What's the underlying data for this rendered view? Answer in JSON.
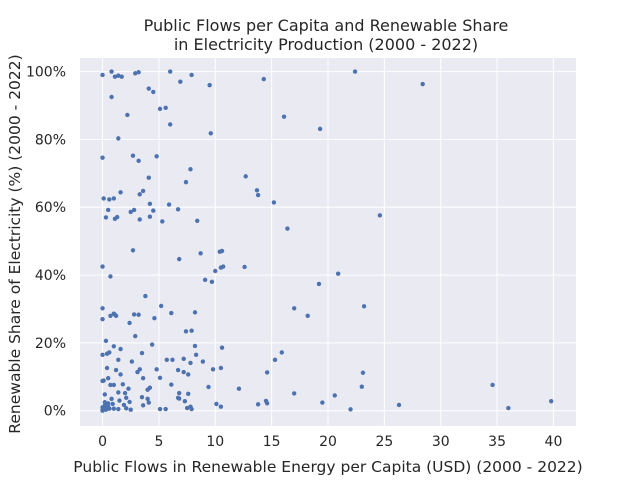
{
  "chart_data": {
    "type": "scatter",
    "title": [
      "Public Flows per Capita and Renewable Share",
      "in Electricity Production (2000 - 2022)"
    ],
    "xlabel": "Public Flows in Renewable Energy per Capita (USD) (2000 - 2022)",
    "ylabel": "Renewable Share of Electricity (%) (2000 - 2022)",
    "xlim": [
      -2,
      42
    ],
    "ylim": [
      -4.5,
      104
    ],
    "xticks": [
      0,
      5,
      10,
      15,
      20,
      25,
      30,
      35,
      40
    ],
    "xtick_labels": [
      "0",
      "5",
      "10",
      "15",
      "20",
      "25",
      "30",
      "35",
      "40"
    ],
    "yticks": [
      0,
      20,
      40,
      60,
      80,
      100
    ],
    "ytick_labels": [
      "0%",
      "20%",
      "40%",
      "60%",
      "80%",
      "100%"
    ],
    "grid": true,
    "colors": {
      "background": "#eaeaf2",
      "grid": "#ffffff",
      "point": "#4c72b0",
      "text": "#262626"
    },
    "points": [
      [
        0.0,
        99
      ],
      [
        0.8,
        100
      ],
      [
        1.1,
        98.5
      ],
      [
        1.4,
        98.8
      ],
      [
        1.7,
        98.5
      ],
      [
        2.9,
        99.5
      ],
      [
        3.2,
        99.8
      ],
      [
        6.0,
        100
      ],
      [
        7.9,
        99
      ],
      [
        22.4,
        100
      ],
      [
        0.8,
        92.5
      ],
      [
        4.1,
        95
      ],
      [
        4.5,
        94
      ],
      [
        6.9,
        97
      ],
      [
        9.5,
        96
      ],
      [
        14.3,
        97.8
      ],
      [
        28.4,
        96.3
      ],
      [
        5.1,
        89
      ],
      [
        5.6,
        89.3
      ],
      [
        2.2,
        87.2
      ],
      [
        6.0,
        84.4
      ],
      [
        16.1,
        86.7
      ],
      [
        1.4,
        80.3
      ],
      [
        9.6,
        81.8
      ],
      [
        19.3,
        83.1
      ],
      [
        0.0,
        74.6
      ],
      [
        2.7,
        75.2
      ],
      [
        3.2,
        73.7
      ],
      [
        4.8,
        75
      ],
      [
        7.8,
        71.2
      ],
      [
        7.4,
        67.4
      ],
      [
        12.7,
        69.1
      ],
      [
        13.7,
        65
      ],
      [
        4.1,
        68.7
      ],
      [
        1.6,
        64.4
      ],
      [
        3.3,
        63.8
      ],
      [
        3.6,
        64.8
      ],
      [
        13.8,
        63.6
      ],
      [
        0.1,
        62.6
      ],
      [
        0.6,
        62.3
      ],
      [
        1.0,
        62.6
      ],
      [
        4.2,
        61.0
      ],
      [
        5.9,
        60.8
      ],
      [
        15.2,
        61.4
      ],
      [
        0.5,
        59.2
      ],
      [
        2.5,
        58.6
      ],
      [
        2.8,
        59.2
      ],
      [
        4.5,
        59.0
      ],
      [
        6.7,
        59.4
      ],
      [
        0.3,
        57.0
      ],
      [
        1.1,
        56.6
      ],
      [
        1.3,
        57.1
      ],
      [
        3.3,
        56.4
      ],
      [
        4.2,
        57.2
      ],
      [
        5.3,
        55.8
      ],
      [
        8.4,
        56.0
      ],
      [
        24.6,
        57.6
      ],
      [
        16.4,
        53.7
      ],
      [
        2.7,
        47.3
      ],
      [
        8.7,
        46.4
      ],
      [
        10.4,
        46.9
      ],
      [
        10.6,
        47.1
      ],
      [
        6.8,
        44.7
      ],
      [
        0.0,
        42.5
      ],
      [
        10.0,
        41.2
      ],
      [
        10.5,
        42.2
      ],
      [
        10.7,
        42.5
      ],
      [
        12.6,
        42.4
      ],
      [
        0.7,
        39.6
      ],
      [
        20.9,
        40.4
      ],
      [
        9.1,
        38.6
      ],
      [
        9.7,
        38.0
      ],
      [
        19.2,
        37.4
      ],
      [
        3.8,
        33.8
      ],
      [
        5.2,
        30.9
      ],
      [
        17.0,
        30.2
      ],
      [
        23.2,
        30.8
      ],
      [
        0.7,
        28.0
      ],
      [
        1.0,
        28.6
      ],
      [
        1.1,
        28.3
      ],
      [
        1.2,
        28.0
      ],
      [
        2.8,
        28.4
      ],
      [
        3.2,
        28.3
      ],
      [
        6.1,
        28.8
      ],
      [
        8.2,
        29.0
      ],
      [
        18.2,
        28.0
      ],
      [
        0.0,
        27.0
      ],
      [
        4.6,
        27.3
      ],
      [
        2.4,
        25.9
      ],
      [
        0.0,
        30.2
      ],
      [
        7.4,
        23.4
      ],
      [
        7.9,
        23.6
      ],
      [
        2.9,
        22.0
      ],
      [
        0.3,
        20.6
      ],
      [
        1.0,
        19.0
      ],
      [
        4.4,
        19.5
      ],
      [
        8.2,
        19.1
      ],
      [
        10.6,
        18.6
      ],
      [
        0.4,
        16.8
      ],
      [
        0.6,
        17.2
      ],
      [
        1.6,
        18.2
      ],
      [
        3.5,
        17.0
      ],
      [
        6.2,
        15.0
      ],
      [
        7.2,
        15.3
      ],
      [
        8.3,
        16.5
      ],
      [
        15.9,
        17.2
      ],
      [
        0.0,
        16.5
      ],
      [
        1.4,
        15.0
      ],
      [
        2.6,
        14.5
      ],
      [
        7.8,
        14.1
      ],
      [
        8.9,
        14.5
      ],
      [
        15.3,
        15.0
      ],
      [
        0.4,
        12.6
      ],
      [
        1.2,
        12.0
      ],
      [
        3.3,
        12.2
      ],
      [
        4.8,
        12.2
      ],
      [
        6.7,
        12.0
      ],
      [
        10.5,
        12.6
      ],
      [
        14.6,
        11.3
      ],
      [
        23.1,
        11.2
      ],
      [
        1.6,
        10.7
      ],
      [
        0.0,
        8.8
      ],
      [
        0.5,
        9.6
      ],
      [
        3.6,
        9.6
      ],
      [
        5.1,
        9.7
      ],
      [
        6.1,
        7.7
      ],
      [
        7.2,
        11.4
      ],
      [
        7.6,
        10.7
      ],
      [
        0.1,
        8.9
      ],
      [
        0.7,
        7.6
      ],
      [
        1.0,
        7.6
      ],
      [
        1.8,
        7.8
      ],
      [
        2.3,
        6.5
      ],
      [
        4.0,
        6.2
      ],
      [
        4.2,
        6.8
      ],
      [
        9.4,
        7.0
      ],
      [
        12.1,
        6.5
      ],
      [
        23.0,
        7.1
      ],
      [
        34.6,
        7.6
      ],
      [
        0.2,
        4.8
      ],
      [
        1.4,
        5.4
      ],
      [
        2.0,
        5.2
      ],
      [
        6.8,
        5.2
      ],
      [
        7.6,
        5.0
      ],
      [
        17.0,
        5.1
      ],
      [
        20.6,
        4.5
      ],
      [
        0.8,
        3.5
      ],
      [
        1.5,
        3.0
      ],
      [
        2.1,
        3.8
      ],
      [
        3.5,
        4.0
      ],
      [
        4.0,
        3.5
      ],
      [
        6.8,
        3.6
      ],
      [
        7.3,
        2.8
      ],
      [
        14.5,
        2.9
      ],
      [
        0.5,
        2.2
      ],
      [
        0.9,
        2.0
      ],
      [
        2.4,
        2.6
      ],
      [
        4.1,
        2.4
      ],
      [
        6.7,
        3.8
      ],
      [
        7.8,
        1.2
      ],
      [
        10.1,
        2.0
      ],
      [
        13.8,
        1.9
      ],
      [
        19.5,
        2.4
      ],
      [
        26.3,
        1.7
      ],
      [
        39.8,
        2.8
      ],
      [
        0.2,
        1.5
      ],
      [
        0.5,
        1.2
      ],
      [
        1.0,
        0.6
      ],
      [
        1.4,
        0.5
      ],
      [
        2.1,
        0.7
      ],
      [
        2.5,
        0.3
      ],
      [
        3.6,
        1.6
      ],
      [
        5.1,
        0.5
      ],
      [
        5.6,
        0.5
      ],
      [
        7.5,
        0.8
      ],
      [
        7.9,
        0.5
      ],
      [
        10.5,
        1.2
      ],
      [
        14.6,
        2.2
      ],
      [
        22.0,
        0.4
      ],
      [
        36.0,
        0.8
      ],
      [
        0.0,
        0.2
      ],
      [
        0.1,
        0.5
      ],
      [
        0.3,
        0.3
      ],
      [
        0.4,
        1.0
      ],
      [
        0.6,
        0.6
      ],
      [
        0.2,
        2.5
      ],
      [
        0.0,
        1.0
      ],
      [
        3.1,
        11.4
      ],
      [
        9.8,
        12.2
      ],
      [
        0.0,
        0.0
      ],
      [
        5.7,
        15.0
      ],
      [
        0.3,
        0.7
      ],
      [
        1.9,
        1.7
      ]
    ]
  }
}
